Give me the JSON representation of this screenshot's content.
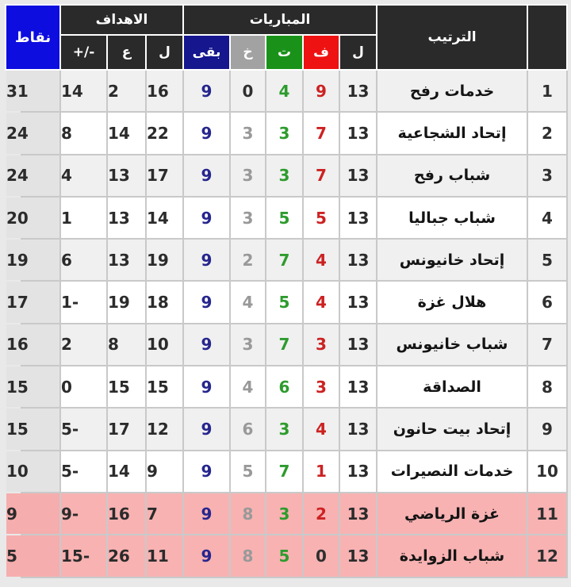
{
  "colors": {
    "header_bg": "#2a2a2a",
    "points_blue": "#0d0de0",
    "wins_red": "#ee1212",
    "draws_green": "#1a921a",
    "losses_gray": "#a2a2a2",
    "remaining_navy": "#16168e",
    "win_value_red": "#cc2222",
    "draw_value_green": "#2d9b2d",
    "loss_value_gray": "#999999",
    "remaining_value_navy": "#26268e",
    "relegation_pink": "#f8b2b2",
    "row_alt_gray": "#f0f0f0",
    "points_col_gray": "#e3e3e3"
  },
  "header": {
    "ranking_label": "الترتيب",
    "matches_label": "المباريات",
    "goals_label": "الاهداف",
    "points_label": "نقاط",
    "columns": {
      "played": "ل",
      "wins": "ف",
      "draws": "ت",
      "losses": "خ",
      "remaining": "بقى",
      "goals_for": "ل",
      "goals_against": "ع",
      "diff": "+/-"
    }
  },
  "rows": [
    {
      "rank": "1",
      "team": "خدمات رفح",
      "played": "13",
      "wins": "9",
      "draws": "4",
      "losses": "0",
      "remaining": "9",
      "goals_for": "16",
      "goals_against": "2",
      "diff": "14",
      "points": "31"
    },
    {
      "rank": "2",
      "team": "إتحاد الشجاعية",
      "played": "13",
      "wins": "7",
      "draws": "3",
      "losses": "3",
      "remaining": "9",
      "goals_for": "22",
      "goals_against": "14",
      "diff": "8",
      "points": "24"
    },
    {
      "rank": "3",
      "team": "شباب رفح",
      "played": "13",
      "wins": "7",
      "draws": "3",
      "losses": "3",
      "remaining": "9",
      "goals_for": "17",
      "goals_against": "13",
      "diff": "4",
      "points": "24"
    },
    {
      "rank": "4",
      "team": "شباب جباليا",
      "played": "13",
      "wins": "5",
      "draws": "5",
      "losses": "3",
      "remaining": "9",
      "goals_for": "14",
      "goals_against": "13",
      "diff": "1",
      "points": "20"
    },
    {
      "rank": "5",
      "team": "إتحاد خانيونس",
      "played": "13",
      "wins": "4",
      "draws": "7",
      "losses": "2",
      "remaining": "9",
      "goals_for": "19",
      "goals_against": "13",
      "diff": "6",
      "points": "19"
    },
    {
      "rank": "6",
      "team": "هلال غزة",
      "played": "13",
      "wins": "4",
      "draws": "5",
      "losses": "4",
      "remaining": "9",
      "goals_for": "18",
      "goals_against": "19",
      "diff": "-1",
      "points": "17"
    },
    {
      "rank": "7",
      "team": "شباب خانيونس",
      "played": "13",
      "wins": "3",
      "draws": "7",
      "losses": "3",
      "remaining": "9",
      "goals_for": "10",
      "goals_against": "8",
      "diff": "2",
      "points": "16"
    },
    {
      "rank": "8",
      "team": "الصداقة",
      "played": "13",
      "wins": "3",
      "draws": "6",
      "losses": "4",
      "remaining": "9",
      "goals_for": "15",
      "goals_against": "15",
      "diff": "0",
      "points": "15"
    },
    {
      "rank": "9",
      "team": "إتحاد بيت حانون",
      "played": "13",
      "wins": "4",
      "draws": "3",
      "losses": "6",
      "remaining": "9",
      "goals_for": "12",
      "goals_against": "17",
      "diff": "-5",
      "points": "15"
    },
    {
      "rank": "10",
      "team": "خدمات النصيرات",
      "played": "13",
      "wins": "1",
      "draws": "7",
      "losses": "5",
      "remaining": "9",
      "goals_for": "9",
      "goals_against": "14",
      "diff": "-5",
      "points": "10"
    },
    {
      "rank": "11",
      "team": "غزة الرياضي",
      "played": "13",
      "wins": "2",
      "draws": "3",
      "losses": "8",
      "remaining": "9",
      "goals_for": "7",
      "goals_against": "16",
      "diff": "-9",
      "points": "9"
    },
    {
      "rank": "12",
      "team": "شباب الزوايدة",
      "played": "13",
      "wins": "0",
      "draws": "5",
      "losses": "8",
      "remaining": "9",
      "goals_for": "11",
      "goals_against": "26",
      "diff": "-15",
      "points": "5"
    }
  ]
}
